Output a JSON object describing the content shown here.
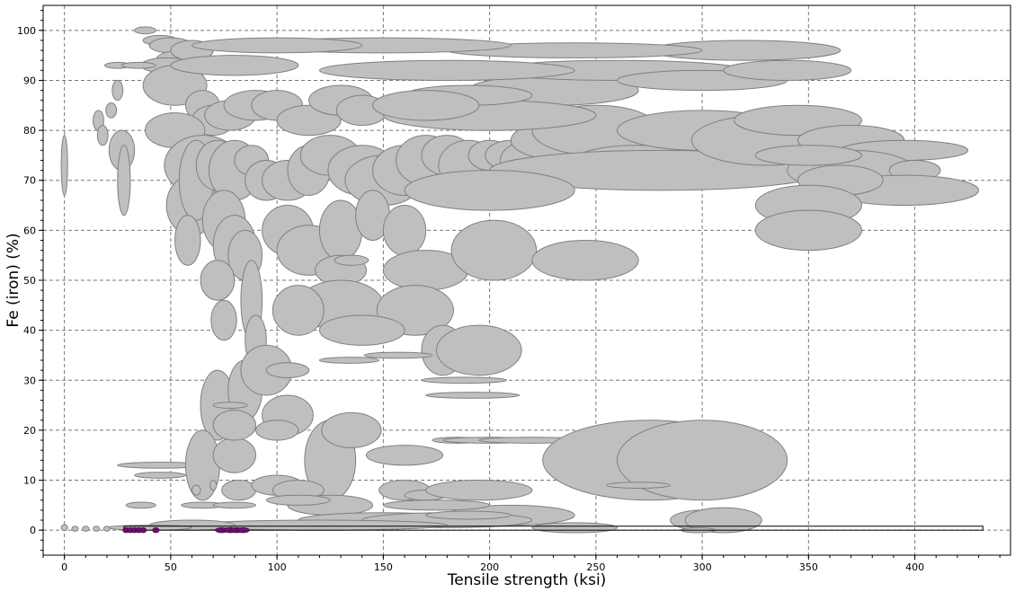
{
  "chart_data": {
    "type": "scatter",
    "title": "",
    "xlabel": "Tensile strength (ksi)",
    "ylabel": "Fe (iron) (%)",
    "xlim": [
      -10,
      445
    ],
    "ylim": [
      -5,
      105
    ],
    "xticks": [
      0,
      50,
      100,
      150,
      200,
      250,
      300,
      350,
      400
    ],
    "yticks": [
      0,
      10,
      20,
      30,
      40,
      50,
      60,
      70,
      80,
      90,
      100
    ],
    "grid": true,
    "legend": "none",
    "colors": {
      "bubble_fill": "#bfbfbf",
      "bubble_edge": "#808080",
      "highlight": "#6b0f6b"
    },
    "highlight_box": {
      "x_range": [
        28,
        432
      ],
      "y_range": [
        0,
        0.8
      ]
    },
    "series": [
      {
        "note_fields": [
          "x_center",
          "y_center",
          "x_halfrange",
          "y_halfrange"
        ],
        "points": [
          [
            0,
            73,
            1.5,
            6
          ],
          [
            0,
            0.5,
            1.5,
            0.6
          ],
          [
            16,
            82,
            2.5,
            2
          ],
          [
            18,
            79,
            2.5,
            2
          ],
          [
            22,
            84,
            2.5,
            1.5
          ],
          [
            25,
            88,
            2.5,
            2
          ],
          [
            27,
            76,
            6,
            4
          ],
          [
            28,
            70,
            3,
            7
          ],
          [
            38,
            100,
            5,
            0.7
          ],
          [
            45,
            98,
            8,
            1
          ],
          [
            50,
            97,
            10,
            1.5
          ],
          [
            55,
            94,
            12,
            2
          ],
          [
            60,
            96,
            10,
            2
          ],
          [
            48,
            93,
            12,
            1.5
          ],
          [
            25,
            93,
            6,
            0.6
          ],
          [
            35,
            93,
            8,
            0.6
          ],
          [
            52,
            89,
            15,
            4
          ],
          [
            65,
            85,
            8,
            3
          ],
          [
            70,
            82,
            10,
            3
          ],
          [
            78,
            83,
            12,
            3
          ],
          [
            90,
            85,
            15,
            3
          ],
          [
            100,
            85,
            12,
            3
          ],
          [
            115,
            82,
            15,
            3
          ],
          [
            130,
            86,
            15,
            3
          ],
          [
            140,
            84,
            12,
            3
          ],
          [
            52,
            80,
            14,
            3.5
          ],
          [
            65,
            73,
            18,
            6
          ],
          [
            60,
            65,
            12,
            6
          ],
          [
            62,
            70,
            8,
            8
          ],
          [
            58,
            58,
            6,
            5
          ],
          [
            72,
            73,
            10,
            5
          ],
          [
            80,
            72,
            12,
            6
          ],
          [
            88,
            74,
            8,
            3
          ],
          [
            95,
            70,
            10,
            4
          ],
          [
            105,
            70,
            12,
            4
          ],
          [
            115,
            72,
            10,
            5
          ],
          [
            125,
            75,
            14,
            4
          ],
          [
            140,
            72,
            16,
            5
          ],
          [
            150,
            70,
            18,
            5
          ],
          [
            160,
            72,
            15,
            5
          ],
          [
            170,
            74,
            14,
            5
          ],
          [
            180,
            75,
            12,
            4
          ],
          [
            190,
            73,
            14,
            5
          ],
          [
            200,
            75,
            10,
            3
          ],
          [
            210,
            75,
            12,
            3
          ],
          [
            220,
            74,
            15,
            4
          ],
          [
            235,
            78,
            25,
            4
          ],
          [
            250,
            80,
            30,
            5
          ],
          [
            270,
            74,
            30,
            3
          ],
          [
            280,
            72,
            80,
            4
          ],
          [
            300,
            80,
            40,
            4
          ],
          [
            330,
            78,
            35,
            5
          ],
          [
            345,
            82,
            30,
            3
          ],
          [
            370,
            78,
            25,
            3
          ],
          [
            395,
            76,
            30,
            2
          ],
          [
            370,
            72,
            30,
            4
          ],
          [
            400,
            72,
            12,
            2
          ],
          [
            395,
            68,
            35,
            3
          ],
          [
            365,
            70,
            20,
            3
          ],
          [
            350,
            75,
            25,
            2
          ],
          [
            350,
            65,
            25,
            4
          ],
          [
            350,
            60,
            25,
            4
          ],
          [
            230,
            88,
            40,
            3
          ],
          [
            260,
            92,
            60,
            2
          ],
          [
            300,
            90,
            40,
            2
          ],
          [
            320,
            96,
            45,
            2
          ],
          [
            340,
            92,
            30,
            2
          ],
          [
            240,
            96,
            60,
            1.5
          ],
          [
            180,
            92,
            60,
            2
          ],
          [
            150,
            97,
            60,
            1.5
          ],
          [
            100,
            97,
            40,
            1.5
          ],
          [
            80,
            93,
            30,
            2
          ],
          [
            200,
            83,
            50,
            3
          ],
          [
            190,
            87,
            30,
            2
          ],
          [
            170,
            85,
            25,
            3
          ],
          [
            75,
            62,
            10,
            6
          ],
          [
            80,
            57,
            10,
            6
          ],
          [
            85,
            55,
            8,
            5
          ],
          [
            72,
            50,
            8,
            4
          ],
          [
            75,
            42,
            6,
            4
          ],
          [
            88,
            46,
            5,
            8
          ],
          [
            90,
            38,
            5,
            5
          ],
          [
            105,
            60,
            12,
            5
          ],
          [
            115,
            56,
            15,
            5
          ],
          [
            130,
            60,
            10,
            6
          ],
          [
            145,
            63,
            8,
            5
          ],
          [
            160,
            60,
            10,
            5
          ],
          [
            170,
            52,
            20,
            4
          ],
          [
            202,
            56,
            20,
            6
          ],
          [
            245,
            54,
            25,
            4
          ],
          [
            200,
            68,
            40,
            4
          ],
          [
            130,
            52,
            12,
            3
          ],
          [
            130,
            45,
            20,
            5
          ],
          [
            165,
            44,
            18,
            5
          ],
          [
            110,
            44,
            12,
            5
          ],
          [
            140,
            40,
            20,
            3
          ],
          [
            178,
            36,
            10,
            5
          ],
          [
            195,
            36,
            20,
            5
          ],
          [
            135,
            54,
            8,
            1
          ],
          [
            134,
            34,
            14,
            0.6
          ],
          [
            157,
            35,
            16,
            0.6
          ],
          [
            188,
            30,
            20,
            0.6
          ],
          [
            192,
            27,
            22,
            0.6
          ],
          [
            72,
            25,
            8,
            7
          ],
          [
            85,
            28,
            8,
            6
          ],
          [
            95,
            32,
            12,
            5
          ],
          [
            105,
            32,
            10,
            1.5
          ],
          [
            105,
            23,
            12,
            4
          ],
          [
            100,
            20,
            10,
            2
          ],
          [
            125,
            14,
            12,
            8
          ],
          [
            135,
            20,
            14,
            3.5
          ],
          [
            160,
            15,
            18,
            2
          ],
          [
            185,
            18,
            12,
            0.6
          ],
          [
            200,
            18,
            22,
            0.6
          ],
          [
            220,
            18,
            25,
            0.6
          ],
          [
            275,
            14,
            50,
            8
          ],
          [
            300,
            14,
            40,
            8
          ],
          [
            270,
            9,
            15,
            0.6
          ],
          [
            45,
            13,
            20,
            0.6
          ],
          [
            45,
            11,
            12,
            0.6
          ],
          [
            65,
            13,
            8,
            7
          ],
          [
            80,
            15,
            10,
            3.5
          ],
          [
            80,
            21,
            10,
            3
          ],
          [
            78,
            25,
            8,
            0.6
          ],
          [
            82,
            8,
            8,
            2
          ],
          [
            100,
            9,
            12,
            2
          ],
          [
            110,
            8,
            12,
            2
          ],
          [
            125,
            5,
            20,
            2
          ],
          [
            160,
            8,
            12,
            2
          ],
          [
            170,
            7,
            10,
            1
          ],
          [
            195,
            8,
            25,
            2
          ],
          [
            210,
            3,
            30,
            2
          ],
          [
            300,
            2,
            15,
            2
          ],
          [
            310,
            2,
            18,
            2.5
          ],
          [
            240,
            0.5,
            20,
            1
          ],
          [
            150,
            2,
            40,
            1.5
          ],
          [
            180,
            2,
            40,
            1.5
          ],
          [
            120,
            1,
            60,
            1
          ],
          [
            60,
            1,
            20,
            1
          ],
          [
            40,
            0.5,
            20,
            0.5
          ],
          [
            298,
            0,
            8,
            0.5
          ],
          [
            36,
            5,
            7,
            0.6
          ],
          [
            65,
            5,
            10,
            0.6
          ],
          [
            80,
            5,
            10,
            0.6
          ],
          [
            110,
            6,
            15,
            1
          ],
          [
            62,
            8,
            2,
            1
          ],
          [
            70,
            9,
            1.5,
            1
          ],
          [
            10,
            0.3,
            1.5,
            0.5
          ],
          [
            5,
            0.3,
            1.5,
            0.5
          ],
          [
            15,
            0.3,
            1.5,
            0.5
          ],
          [
            20,
            0.3,
            1.5,
            0.5
          ],
          [
            175,
            5,
            25,
            1
          ],
          [
            190,
            3,
            20,
            0.8
          ]
        ]
      },
      {
        "note_fields": [
          "x_center",
          "y_center",
          "x_halfrange",
          "y_halfrange"
        ],
        "points": [
          [
            29,
            0,
            1.5,
            0.5
          ],
          [
            31,
            0,
            1.5,
            0.5
          ],
          [
            33,
            0,
            1.5,
            0.5
          ],
          [
            35,
            0,
            1.5,
            0.5
          ],
          [
            37,
            0,
            1.5,
            0.5
          ],
          [
            43,
            0,
            1.5,
            0.5
          ],
          [
            74,
            0,
            3,
            0.5
          ],
          [
            78,
            0,
            3,
            0.5
          ],
          [
            81,
            0,
            3,
            0.5
          ],
          [
            84,
            0,
            3,
            0.5
          ]
        ]
      }
    ]
  }
}
